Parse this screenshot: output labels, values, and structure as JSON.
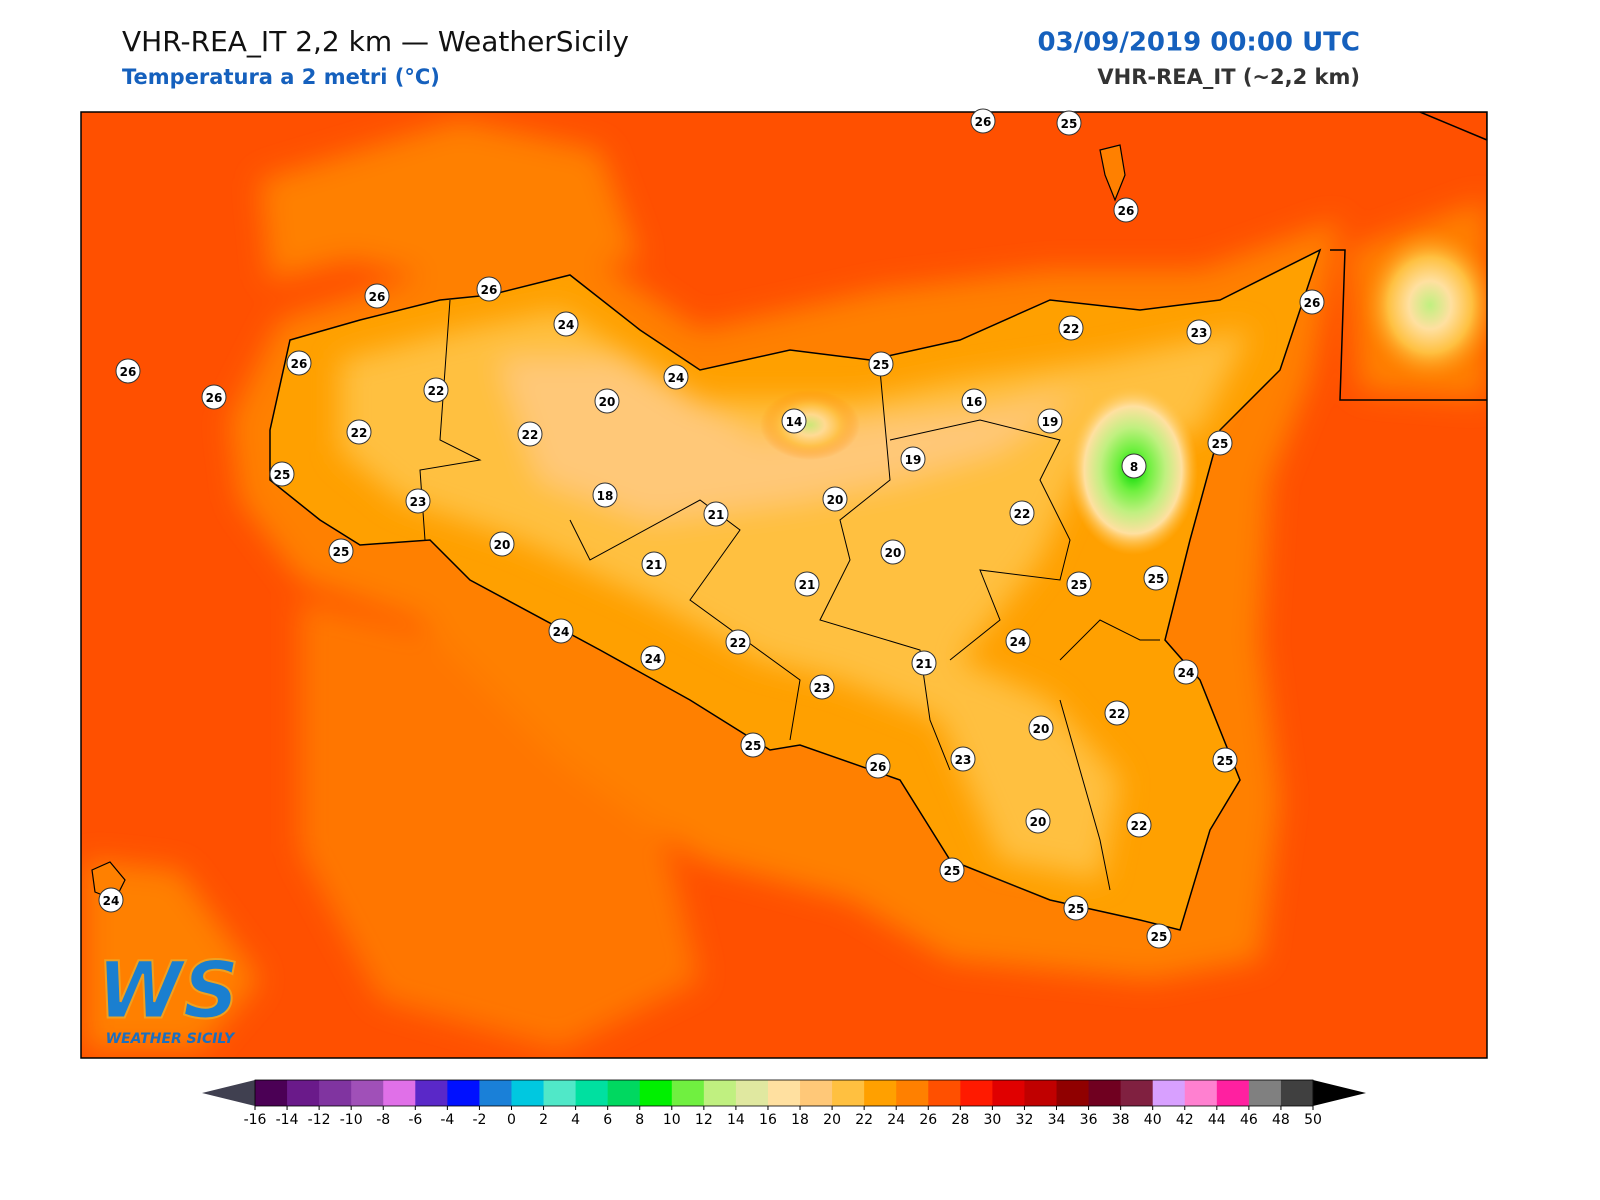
{
  "header": {
    "title": "VHR-REA_IT 2,2 km — WeatherSicily",
    "subtitle": "Temperatura a 2 metri (°C)",
    "datetime": "03/09/2019 00:00 UTC",
    "model": "VHR-REA_IT (~2,2 km)"
  },
  "stations": [
    26,
    25,
    26,
    26,
    26,
    24,
    22,
    23,
    26,
    26,
    26,
    26,
    22,
    20,
    24,
    25,
    16,
    19,
    14,
    22,
    22,
    19,
    8,
    25,
    25,
    23,
    18,
    20,
    21,
    22,
    25,
    20,
    20,
    21,
    21,
    25,
    25,
    24,
    22,
    24,
    24,
    21,
    24,
    23,
    22,
    20,
    25,
    23,
    26,
    25,
    20,
    22,
    25,
    24,
    25,
    25
  ],
  "colorbar": {
    "ticks": [
      -16,
      -14,
      -12,
      -10,
      -8,
      -6,
      -4,
      -2,
      0,
      2,
      4,
      6,
      8,
      10,
      12,
      14,
      16,
      18,
      20,
      22,
      24,
      26,
      28,
      30,
      32,
      34,
      36,
      38,
      40,
      42,
      44,
      46,
      48,
      50
    ],
    "colors": [
      "#4b0055",
      "#6a1a8a",
      "#8034a0",
      "#a050b8",
      "#e070e8",
      "#5a28c8",
      "#0010ff",
      "#1a80d8",
      "#00c8e0",
      "#50e8c8",
      "#00e0a0",
      "#00d860",
      "#00f000",
      "#70f040",
      "#c0f080",
      "#e0e8a0",
      "#ffe0a0",
      "#ffc878",
      "#ffc040",
      "#ffa000",
      "#ff8000",
      "#ff5000",
      "#ff1a00",
      "#e00000",
      "#c00000",
      "#900000",
      "#700020",
      "#802040",
      "#d8a0ff",
      "#ff80d0",
      "#ff20a0",
      "#808080",
      "#404040"
    ],
    "under_color": "#404050",
    "over_color": "#000000"
  },
  "logo": {
    "mark": "WS",
    "text": "WEATHER SICILY"
  }
}
